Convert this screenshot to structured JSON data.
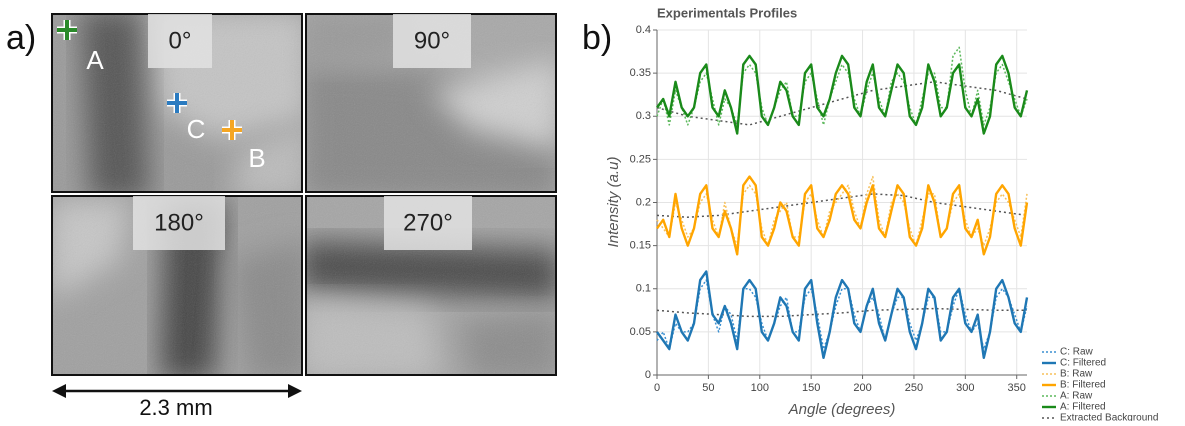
{
  "panel_labels": [
    "a)",
    "b)"
  ],
  "images": [
    {
      "angle": "0°"
    },
    {
      "angle": "90°"
    },
    {
      "angle": "180°"
    },
    {
      "angle": "270°"
    }
  ],
  "markers": [
    {
      "label": "A",
      "color": "#2a8a2a"
    },
    {
      "label": "C",
      "color": "#2b7bc0"
    },
    {
      "label": "B",
      "color": "#f5a623"
    }
  ],
  "scale_bar": "2.3 mm",
  "chart_data": {
    "type": "line",
    "title": "Experimentals Profiles",
    "x_label": "Angle (degrees)",
    "y_label": "Intensity (a.u)",
    "xlim": [
      0,
      360
    ],
    "xticks": [
      0,
      50,
      100,
      150,
      200,
      250,
      300,
      350
    ],
    "ylim": [
      0,
      0.4
    ],
    "yticks": [
      0,
      0.05,
      0.1,
      0.15,
      0.2,
      0.25,
      0.3,
      0.35,
      0.4
    ],
    "grid": true,
    "x": [
      0,
      6,
      12,
      18,
      24,
      30,
      36,
      42,
      48,
      54,
      60,
      66,
      72,
      78,
      84,
      90,
      96,
      102,
      108,
      114,
      120,
      126,
      132,
      138,
      144,
      150,
      156,
      162,
      168,
      174,
      180,
      186,
      192,
      198,
      204,
      210,
      216,
      222,
      228,
      234,
      240,
      246,
      252,
      258,
      264,
      270,
      276,
      282,
      288,
      294,
      300,
      306,
      312,
      318,
      324,
      330,
      336,
      342,
      348,
      354,
      360
    ],
    "series": [
      {
        "name": "C: Raw",
        "color": "#3a8fd0",
        "style": "dotted",
        "values": [
          0.04,
          0.05,
          0.03,
          0.06,
          0.05,
          0.05,
          0.06,
          0.1,
          0.11,
          0.07,
          0.05,
          0.08,
          0.07,
          0.04,
          0.1,
          0.1,
          0.09,
          0.06,
          0.04,
          0.06,
          0.08,
          0.09,
          0.05,
          0.05,
          0.09,
          0.1,
          0.07,
          0.03,
          0.05,
          0.08,
          0.1,
          0.1,
          0.07,
          0.05,
          0.08,
          0.09,
          0.07,
          0.04,
          0.07,
          0.09,
          0.09,
          0.06,
          0.04,
          0.06,
          0.09,
          0.09,
          0.05,
          0.05,
          0.08,
          0.1,
          0.07,
          0.05,
          0.06,
          0.03,
          0.05,
          0.09,
          0.1,
          0.09,
          0.07,
          0.05,
          0.08
        ]
      },
      {
        "name": "C: Filtered",
        "color": "#1f77b4",
        "style": "solid",
        "values": [
          0.05,
          0.04,
          0.03,
          0.07,
          0.05,
          0.04,
          0.06,
          0.11,
          0.12,
          0.07,
          0.06,
          0.08,
          0.06,
          0.03,
          0.1,
          0.11,
          0.1,
          0.05,
          0.04,
          0.06,
          0.09,
          0.08,
          0.05,
          0.04,
          0.1,
          0.11,
          0.06,
          0.02,
          0.05,
          0.09,
          0.11,
          0.1,
          0.06,
          0.05,
          0.08,
          0.1,
          0.06,
          0.04,
          0.07,
          0.1,
          0.09,
          0.05,
          0.03,
          0.06,
          0.1,
          0.09,
          0.04,
          0.05,
          0.09,
          0.1,
          0.06,
          0.05,
          0.07,
          0.02,
          0.05,
          0.1,
          0.11,
          0.09,
          0.06,
          0.05,
          0.09
        ]
      },
      {
        "name": "B: Raw",
        "color": "#f7c05a",
        "style": "dotted",
        "values": [
          0.18,
          0.17,
          0.16,
          0.2,
          0.18,
          0.16,
          0.17,
          0.2,
          0.21,
          0.18,
          0.16,
          0.2,
          0.17,
          0.15,
          0.21,
          0.22,
          0.21,
          0.17,
          0.15,
          0.18,
          0.19,
          0.2,
          0.16,
          0.16,
          0.2,
          0.21,
          0.18,
          0.16,
          0.19,
          0.2,
          0.21,
          0.22,
          0.19,
          0.17,
          0.21,
          0.23,
          0.18,
          0.16,
          0.2,
          0.21,
          0.2,
          0.17,
          0.15,
          0.18,
          0.21,
          0.21,
          0.16,
          0.17,
          0.2,
          0.21,
          0.18,
          0.16,
          0.17,
          0.15,
          0.17,
          0.2,
          0.21,
          0.2,
          0.18,
          0.16,
          0.21
        ]
      },
      {
        "name": "B: Filtered",
        "color": "#ffa500",
        "style": "solid",
        "values": [
          0.17,
          0.18,
          0.16,
          0.21,
          0.17,
          0.15,
          0.17,
          0.21,
          0.22,
          0.17,
          0.16,
          0.19,
          0.17,
          0.14,
          0.22,
          0.23,
          0.22,
          0.16,
          0.15,
          0.17,
          0.2,
          0.19,
          0.16,
          0.15,
          0.21,
          0.22,
          0.17,
          0.16,
          0.18,
          0.21,
          0.22,
          0.21,
          0.18,
          0.17,
          0.2,
          0.22,
          0.17,
          0.16,
          0.19,
          0.22,
          0.21,
          0.16,
          0.15,
          0.17,
          0.22,
          0.2,
          0.16,
          0.17,
          0.21,
          0.22,
          0.17,
          0.16,
          0.18,
          0.14,
          0.16,
          0.21,
          0.22,
          0.21,
          0.17,
          0.15,
          0.2
        ]
      },
      {
        "name": "A: Raw",
        "color": "#5cb85c",
        "style": "dotted",
        "values": [
          0.3,
          0.32,
          0.29,
          0.33,
          0.31,
          0.29,
          0.31,
          0.34,
          0.35,
          0.32,
          0.29,
          0.32,
          0.31,
          0.29,
          0.35,
          0.36,
          0.35,
          0.31,
          0.29,
          0.31,
          0.33,
          0.34,
          0.3,
          0.3,
          0.34,
          0.35,
          0.32,
          0.29,
          0.32,
          0.34,
          0.36,
          0.35,
          0.32,
          0.3,
          0.33,
          0.35,
          0.32,
          0.3,
          0.34,
          0.35,
          0.34,
          0.31,
          0.29,
          0.32,
          0.35,
          0.35,
          0.31,
          0.31,
          0.37,
          0.38,
          0.33,
          0.3,
          0.33,
          0.29,
          0.31,
          0.35,
          0.36,
          0.34,
          0.32,
          0.3,
          0.32
        ]
      },
      {
        "name": "A: Filtered",
        "color": "#1a8a1a",
        "style": "solid",
        "values": [
          0.31,
          0.32,
          0.3,
          0.34,
          0.31,
          0.3,
          0.31,
          0.35,
          0.36,
          0.31,
          0.3,
          0.33,
          0.31,
          0.28,
          0.36,
          0.37,
          0.36,
          0.3,
          0.29,
          0.31,
          0.34,
          0.33,
          0.3,
          0.29,
          0.35,
          0.36,
          0.31,
          0.3,
          0.32,
          0.35,
          0.37,
          0.36,
          0.31,
          0.3,
          0.34,
          0.36,
          0.31,
          0.3,
          0.33,
          0.36,
          0.35,
          0.3,
          0.29,
          0.31,
          0.36,
          0.34,
          0.3,
          0.31,
          0.35,
          0.36,
          0.31,
          0.3,
          0.32,
          0.28,
          0.3,
          0.36,
          0.37,
          0.35,
          0.31,
          0.3,
          0.33
        ]
      }
    ],
    "background": {
      "name": "Extracted Background",
      "color": "#555555",
      "x": [
        0,
        30,
        60,
        90,
        120,
        150,
        180,
        210,
        240,
        270,
        300,
        330,
        360
      ],
      "curves": [
        [
          0.075,
          0.072,
          0.07,
          0.068,
          0.068,
          0.07,
          0.072,
          0.075,
          0.076,
          0.077,
          0.076,
          0.075,
          0.075
        ],
        [
          0.185,
          0.183,
          0.185,
          0.19,
          0.195,
          0.2,
          0.205,
          0.21,
          0.208,
          0.2,
          0.195,
          0.19,
          0.185
        ],
        [
          0.31,
          0.3,
          0.295,
          0.29,
          0.3,
          0.31,
          0.32,
          0.33,
          0.335,
          0.34,
          0.335,
          0.33,
          0.32
        ]
      ]
    }
  }
}
